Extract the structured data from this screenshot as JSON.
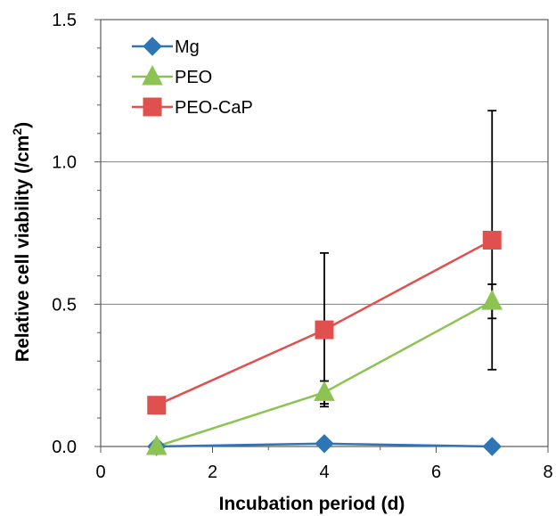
{
  "chart_data": {
    "type": "line",
    "xlabel": "Incubation period (d)",
    "ylabel": "Relative cell viability (/cm",
    "ylabel_sup": "2",
    "ylabel_close": ")",
    "xlim": [
      0,
      8
    ],
    "ylim": [
      0,
      1.5
    ],
    "xticks": [
      0,
      2,
      4,
      6,
      8
    ],
    "xtick_labels": [
      "0",
      "2",
      "4",
      "6",
      "8"
    ],
    "yticks": [
      0,
      0.5,
      1.0,
      1.5
    ],
    "ytick_labels": [
      "0.0",
      "0.5",
      "1.0",
      "1.5"
    ],
    "y_minor_step": 0.1,
    "x_minor_step": 1,
    "grid": "horizontal major",
    "legend_position": "top-left",
    "x": [
      1,
      4,
      7
    ],
    "series": [
      {
        "name": "Mg",
        "values": [
          0.0,
          0.01,
          0.0
        ],
        "error": [
          0,
          0,
          0
        ],
        "color": "#2e75b6",
        "marker": "diamond"
      },
      {
        "name": "PEO",
        "values": [
          0.0,
          0.19,
          0.51
        ],
        "error": [
          0,
          0.04,
          0.06
        ],
        "color": "#8dc353",
        "marker": "triangle"
      },
      {
        "name": "PEO-CaP",
        "values": [
          0.145,
          0.41,
          0.725
        ],
        "error": [
          0,
          0.27,
          0.455
        ],
        "color": "#e0504f",
        "marker": "square"
      }
    ]
  }
}
